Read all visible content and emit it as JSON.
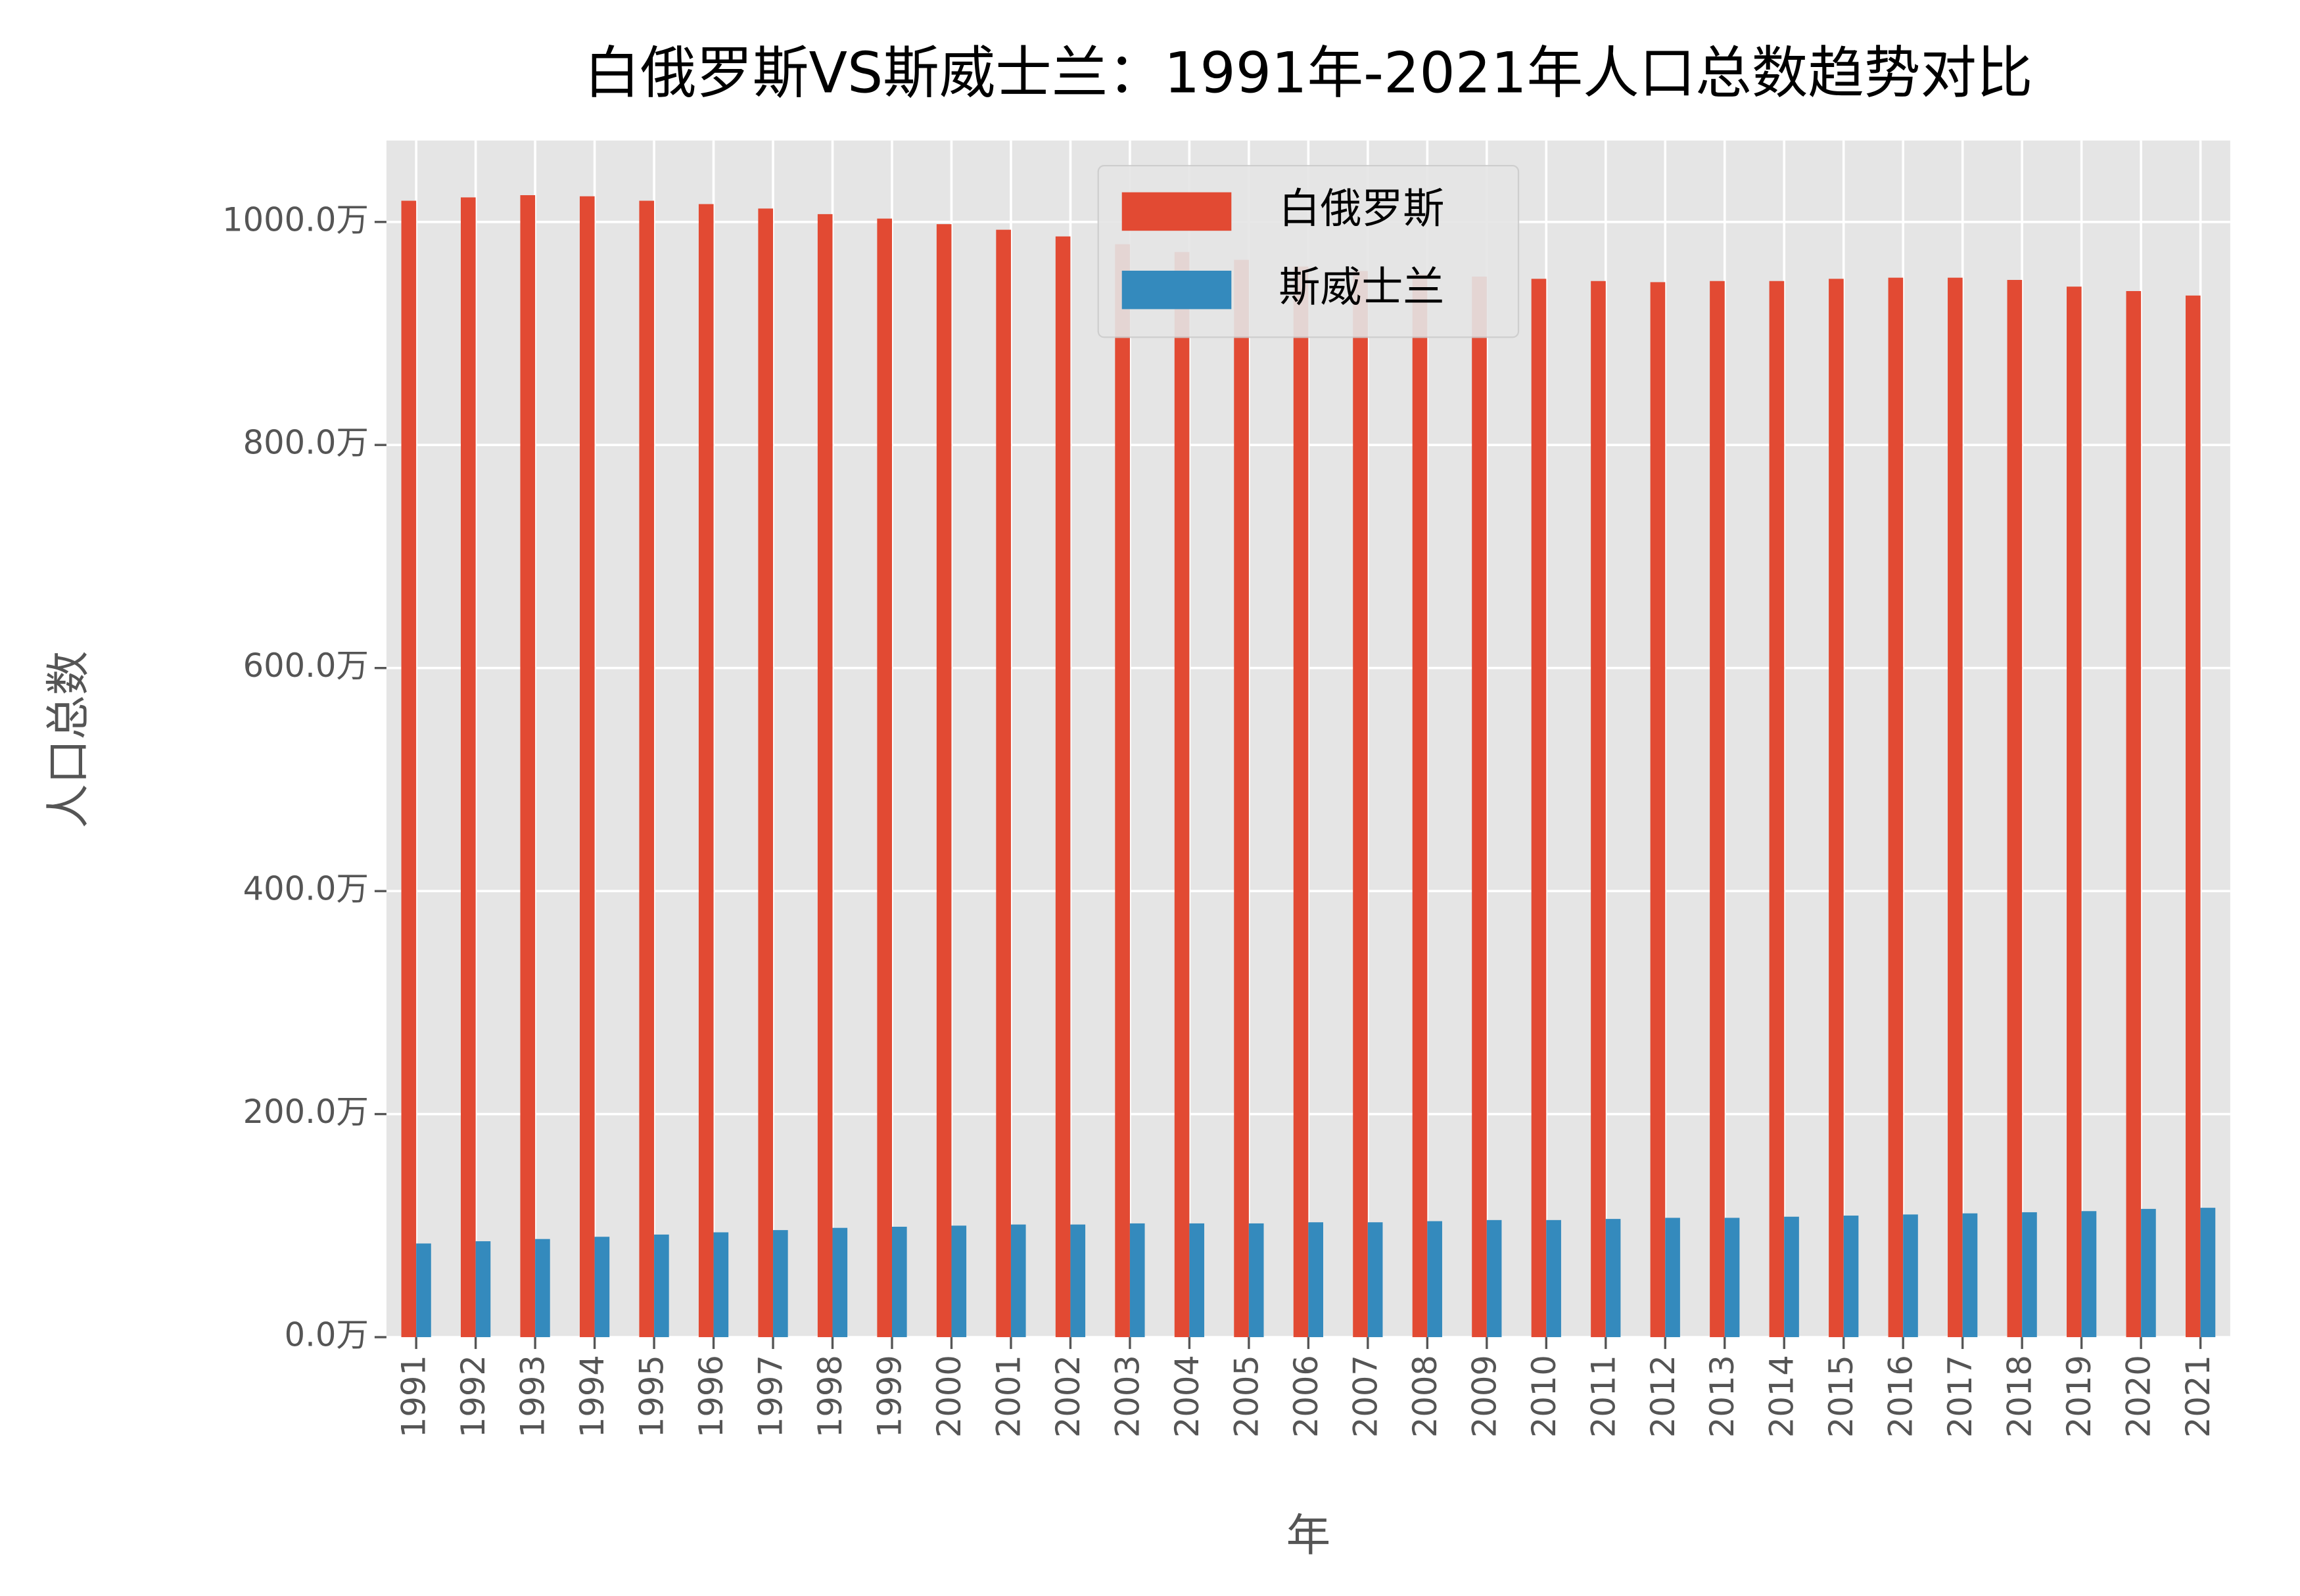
{
  "chart_data": {
    "type": "bar",
    "title": "白俄罗斯VS斯威士兰：1991年-2021年人口总数趋势对比",
    "x_label": "年",
    "y_label": "人口总数",
    "categories": [
      "1991",
      "1992",
      "1993",
      "1994",
      "1995",
      "1996",
      "1997",
      "1998",
      "1999",
      "2000",
      "2001",
      "2002",
      "2003",
      "2004",
      "2005",
      "2006",
      "2007",
      "2008",
      "2009",
      "2010",
      "2011",
      "2012",
      "2013",
      "2014",
      "2015",
      "2016",
      "2017",
      "2018",
      "2019",
      "2020",
      "2021"
    ],
    "series": [
      {
        "name": "白俄罗斯",
        "color": "#E24A33",
        "values": [
          1019,
          1022,
          1024,
          1023,
          1019,
          1016,
          1012,
          1007,
          1003,
          998,
          993,
          987,
          980,
          973,
          966,
          960,
          956,
          953,
          951,
          949,
          947,
          946,
          947,
          947,
          949,
          950,
          950,
          948,
          942,
          938,
          934
        ]
      },
      {
        "name": "斯威士兰",
        "color": "#348ABD",
        "values": [
          84,
          86,
          88,
          90,
          92,
          94,
          96,
          98,
          99,
          100,
          101,
          101,
          102,
          102,
          102,
          103,
          103,
          104,
          105,
          105,
          106,
          107,
          107,
          108,
          109,
          110,
          111,
          112,
          113,
          115,
          116
        ]
      }
    ],
    "ylim": [
      0,
      1073
    ],
    "yticks": [
      {
        "value": 0,
        "label": "0.0万"
      },
      {
        "value": 200,
        "label": "200.0万"
      },
      {
        "value": 400,
        "label": "400.0万"
      },
      {
        "value": 600,
        "label": "600.0万"
      },
      {
        "value": 800,
        "label": "800.0万"
      },
      {
        "value": 1000,
        "label": "1000.0万"
      }
    ],
    "grid": true,
    "legend": "upper center"
  }
}
